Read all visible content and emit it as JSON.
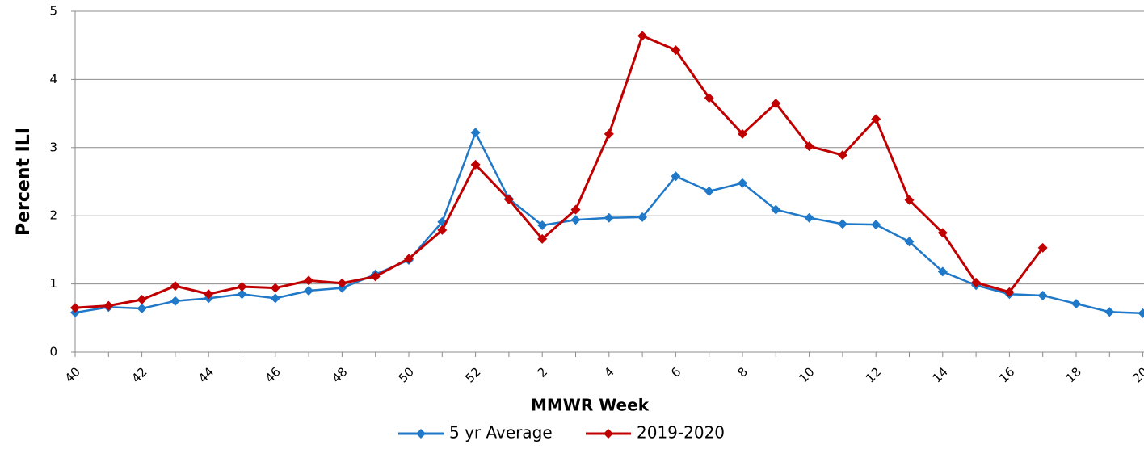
{
  "chart_data": {
    "type": "line",
    "x_label": "MMWR Week",
    "y_label": "Percent ILI",
    "categories": [
      "40",
      null,
      "42",
      null,
      "44",
      null,
      "46",
      null,
      "48",
      null,
      "50",
      null,
      "52",
      null,
      "2",
      null,
      "4",
      null,
      "6",
      null,
      "8",
      null,
      "10",
      null,
      "12",
      null,
      "14",
      null,
      "16",
      null,
      "18",
      null,
      "20"
    ],
    "series": [
      {
        "name": "5 yr Average",
        "color": "#1f78c8",
        "values": [
          0.58,
          0.66,
          0.64,
          0.75,
          0.79,
          0.85,
          0.79,
          0.9,
          0.94,
          1.14,
          1.35,
          1.91,
          3.22,
          2.25,
          1.86,
          1.94,
          1.97,
          1.98,
          2.58,
          2.36,
          2.48,
          2.09,
          1.97,
          1.88,
          1.87,
          1.62,
          1.18,
          0.98,
          0.85,
          0.83,
          0.71,
          0.59,
          0.57
        ]
      },
      {
        "name": "2019-2020",
        "color": "#c00000",
        "values": [
          0.65,
          0.68,
          0.77,
          0.97,
          0.85,
          0.96,
          0.94,
          1.05,
          1.01,
          1.11,
          1.37,
          1.79,
          2.75,
          2.24,
          1.66,
          2.09,
          3.2,
          4.64,
          4.43,
          3.73,
          3.2,
          3.65,
          3.02,
          2.89,
          3.42,
          2.23,
          1.75,
          1.02,
          0.88,
          1.53,
          null,
          null,
          null
        ]
      }
    ],
    "ylim": [
      0,
      5
    ],
    "yticks": [
      0,
      1,
      2,
      3,
      4,
      5
    ],
    "grid": true,
    "legend": "bottom"
  }
}
